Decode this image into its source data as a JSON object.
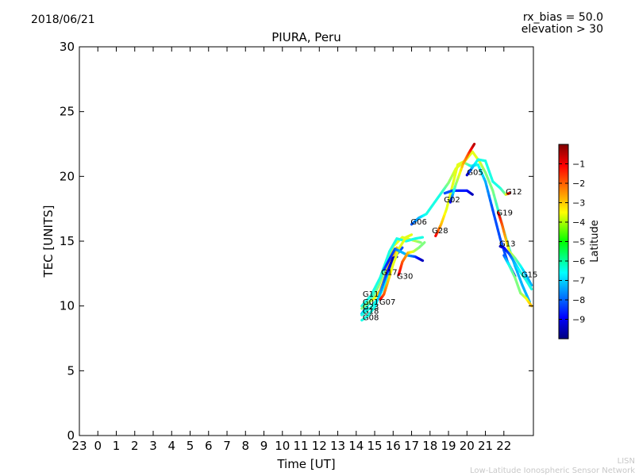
{
  "header": {
    "date": "2018/06/21",
    "rx_bias": "rx_bias = 50.0",
    "elevation": "elevation > 30"
  },
  "footer": {
    "credit_short": "LISN",
    "credit_long": "Low-Latitude Ionospheric Sensor Network"
  },
  "chart_data": {
    "type": "scatter",
    "title": "PIURA, Peru",
    "xlabel": "Time [UT]",
    "ylabel": "TEC [UNITS]",
    "ylim": [
      0,
      30
    ],
    "xlim": [
      -1,
      23.6
    ],
    "y_ticks": [
      0,
      5,
      10,
      15,
      20,
      25,
      30
    ],
    "x_ticks": [
      {
        "value": -1,
        "label": "23"
      },
      {
        "value": 0,
        "label": "0"
      },
      {
        "value": 1,
        "label": "1"
      },
      {
        "value": 2,
        "label": "2"
      },
      {
        "value": 3,
        "label": "3"
      },
      {
        "value": 4,
        "label": "4"
      },
      {
        "value": 5,
        "label": "5"
      },
      {
        "value": 6,
        "label": "6"
      },
      {
        "value": 7,
        "label": "7"
      },
      {
        "value": 8,
        "label": "8"
      },
      {
        "value": 9,
        "label": "9"
      },
      {
        "value": 10,
        "label": "10"
      },
      {
        "value": 11,
        "label": "11"
      },
      {
        "value": 12,
        "label": "12"
      },
      {
        "value": 13,
        "label": "13"
      },
      {
        "value": 14,
        "label": "14"
      },
      {
        "value": 15,
        "label": "15"
      },
      {
        "value": 16,
        "label": "16"
      },
      {
        "value": 17,
        "label": "17"
      },
      {
        "value": 18,
        "label": "18"
      },
      {
        "value": 19,
        "label": "19"
      },
      {
        "value": 20,
        "label": "20"
      },
      {
        "value": 21,
        "label": "21"
      },
      {
        "value": 22,
        "label": "22"
      }
    ],
    "grid": false,
    "colorbar": {
      "label": "Latitude",
      "min": -10,
      "max": 0,
      "ticks": [
        -1,
        -2,
        -3,
        -4,
        -5,
        -6,
        -7,
        -8,
        -9
      ],
      "tick_labels": [
        "−1",
        "−2",
        "−3",
        "−4",
        "−5",
        "−6",
        "−7",
        "−8",
        "−9"
      ],
      "colormap": "jet"
    },
    "series": [
      {
        "name": "G11",
        "points": [
          [
            14.3,
            9.4,
            -7
          ],
          [
            14.7,
            10.2,
            -6
          ],
          [
            15.2,
            11.5,
            -5
          ],
          [
            15.6,
            13.0,
            -5
          ],
          [
            16.0,
            14.6,
            -4
          ],
          [
            16.5,
            15.3,
            -4
          ],
          [
            17.0,
            15.1,
            -4
          ],
          [
            17.5,
            14.9,
            -5
          ]
        ]
      },
      {
        "name": "G01",
        "points": [
          [
            14.3,
            10.0,
            -6
          ],
          [
            14.8,
            10.8,
            -6
          ],
          [
            15.3,
            12.2,
            -6
          ],
          [
            15.8,
            14.2,
            -6
          ],
          [
            16.2,
            15.2,
            -6
          ],
          [
            16.7,
            15.0,
            -6
          ],
          [
            17.2,
            15.2,
            -6
          ],
          [
            17.6,
            15.3,
            -6
          ]
        ]
      },
      {
        "name": "G23",
        "points": [
          [
            14.3,
            9.8,
            -5
          ],
          [
            14.7,
            10.3,
            -5
          ],
          [
            15.0,
            10.6,
            -4
          ],
          [
            15.3,
            11.2,
            -3
          ],
          [
            15.6,
            12.4,
            -3
          ],
          [
            15.9,
            13.6,
            -3
          ],
          [
            16.2,
            14.5,
            -3
          ]
        ]
      },
      {
        "name": "G18",
        "points": [
          [
            14.3,
            9.3,
            -6
          ],
          [
            14.8,
            9.9,
            -6
          ],
          [
            15.2,
            10.6,
            -6
          ],
          [
            15.5,
            11.5,
            -6
          ],
          [
            15.9,
            13.0,
            -7
          ],
          [
            16.2,
            14.0,
            -8
          ],
          [
            16.5,
            14.5,
            -8
          ]
        ]
      },
      {
        "name": "G08",
        "points": [
          [
            14.3,
            8.9,
            -6
          ],
          [
            14.6,
            9.2,
            -6
          ],
          [
            15.0,
            9.9,
            -6
          ],
          [
            15.3,
            11.0,
            -7
          ],
          [
            15.6,
            12.3,
            -8
          ],
          [
            15.8,
            13.0,
            -9
          ],
          [
            16.0,
            13.7,
            -9.5
          ],
          [
            16.2,
            13.8,
            -9.5
          ]
        ]
      },
      {
        "name": "G07",
        "points": [
          [
            15.3,
            10.5,
            -1
          ],
          [
            15.5,
            10.9,
            -2
          ],
          [
            15.7,
            11.8,
            -3
          ],
          [
            16.0,
            13.2,
            -4
          ],
          [
            16.3,
            14.4,
            -4
          ],
          [
            16.7,
            15.3,
            -4
          ],
          [
            17.0,
            15.5,
            -4
          ]
        ]
      },
      {
        "name": "G17",
        "points": [
          [
            15.5,
            12.8,
            -8
          ],
          [
            15.8,
            13.6,
            -8.5
          ],
          [
            16.1,
            14.4,
            -8
          ],
          [
            16.4,
            14.2,
            -7
          ],
          [
            16.8,
            13.9,
            -7
          ],
          [
            17.2,
            13.8,
            -8
          ],
          [
            17.6,
            13.5,
            -9.5
          ]
        ]
      },
      {
        "name": "G30",
        "points": [
          [
            16.3,
            12.4,
            -1
          ],
          [
            16.5,
            13.4,
            -2
          ],
          [
            16.8,
            14.1,
            -3
          ],
          [
            17.1,
            14.2,
            -4
          ],
          [
            17.4,
            14.5,
            -5
          ],
          [
            17.7,
            14.9,
            -5
          ]
        ]
      },
      {
        "name": "G06",
        "points": [
          [
            17.0,
            16.3,
            -8
          ],
          [
            17.4,
            16.8,
            -7
          ],
          [
            17.8,
            17.1,
            -6
          ],
          [
            18.2,
            17.9,
            -6
          ],
          [
            18.6,
            18.7,
            -6
          ],
          [
            19.0,
            19.5,
            -5
          ],
          [
            19.4,
            20.6,
            -4
          ],
          [
            19.8,
            21.1,
            -4
          ],
          [
            20.2,
            20.8,
            -6
          ],
          [
            20.6,
            20.9,
            -6
          ],
          [
            21.0,
            19.6,
            -7
          ],
          [
            21.4,
            17.4,
            -8
          ],
          [
            21.8,
            15.2,
            -8
          ],
          [
            22.2,
            13.4,
            -8
          ],
          [
            22.6,
            12.3,
            -9
          ]
        ]
      },
      {
        "name": "G28",
        "points": [
          [
            18.3,
            15.4,
            -1
          ],
          [
            18.6,
            16.3,
            -3
          ],
          [
            18.9,
            17.5,
            -4
          ],
          [
            19.2,
            19.2,
            -4
          ],
          [
            19.5,
            20.9,
            -4
          ],
          [
            19.9,
            21.2,
            -4
          ],
          [
            20.3,
            21.9,
            -4
          ],
          [
            20.7,
            21.1,
            -4
          ],
          [
            21.0,
            20.3,
            -5
          ],
          [
            21.4,
            18.9,
            -5
          ],
          [
            21.8,
            16.8,
            -6
          ],
          [
            22.2,
            14.8,
            -6
          ],
          [
            22.6,
            13.1,
            -7
          ],
          [
            23.0,
            11.6,
            -7
          ],
          [
            23.4,
            10.3,
            -7
          ]
        ]
      },
      {
        "name": "G02",
        "points": [
          [
            18.8,
            18.7,
            -8
          ],
          [
            19.2,
            18.9,
            -8
          ],
          [
            19.6,
            18.9,
            -8.5
          ],
          [
            20.0,
            18.9,
            -8.5
          ],
          [
            20.3,
            18.6,
            -9.5
          ]
        ]
      },
      {
        "name": "G05",
        "points": [
          [
            19.1,
            18.0,
            -9
          ],
          [
            19.4,
            19.4,
            -5
          ],
          [
            19.8,
            21.0,
            -3
          ],
          [
            20.1,
            21.8,
            -2
          ],
          [
            20.4,
            22.5,
            -0.5
          ]
        ]
      },
      {
        "name": "G12",
        "points": [
          [
            20.0,
            20.1,
            -9.5
          ],
          [
            20.3,
            20.7,
            -7
          ],
          [
            20.6,
            21.3,
            -6
          ],
          [
            21.0,
            21.2,
            -6
          ],
          [
            21.4,
            19.6,
            -6
          ],
          [
            21.8,
            19.1,
            -6
          ],
          [
            22.1,
            18.6,
            -5
          ],
          [
            22.3,
            18.7,
            -0.5
          ]
        ]
      },
      {
        "name": "G19",
        "points": [
          [
            21.7,
            17.2,
            -1
          ],
          [
            21.9,
            16.3,
            -2
          ],
          [
            22.1,
            15.2,
            -3
          ],
          [
            22.3,
            14.2,
            -4
          ],
          [
            22.6,
            13.7,
            -5
          ],
          [
            22.9,
            13.1,
            -6
          ],
          [
            23.2,
            12.4,
            -7
          ],
          [
            23.5,
            11.6,
            -7
          ]
        ]
      },
      {
        "name": "G13",
        "points": [
          [
            21.8,
            14.6,
            -9.5
          ],
          [
            22.0,
            14.5,
            -9
          ],
          [
            22.3,
            14.0,
            -8
          ],
          [
            22.6,
            13.3,
            -7
          ],
          [
            22.9,
            12.6,
            -6
          ],
          [
            23.2,
            12.0,
            -6
          ],
          [
            23.5,
            11.3,
            -6
          ]
        ]
      },
      {
        "name": "G15",
        "points": [
          [
            22.0,
            13.9,
            -8
          ],
          [
            22.3,
            13.1,
            -6
          ],
          [
            22.6,
            12.2,
            -5
          ],
          [
            22.9,
            11.0,
            -5
          ],
          [
            23.2,
            10.6,
            -4
          ],
          [
            23.5,
            10.0,
            -3
          ]
        ]
      }
    ],
    "satellite_labels": [
      {
        "name": "G11",
        "x": 14.35,
        "y": 10.7
      },
      {
        "name": "G01",
        "x": 14.35,
        "y": 10.1
      },
      {
        "name": "G23",
        "x": 14.35,
        "y": 9.75
      },
      {
        "name": "G18",
        "x": 14.35,
        "y": 9.4
      },
      {
        "name": "G08",
        "x": 14.35,
        "y": 8.9
      },
      {
        "name": "G07",
        "x": 15.25,
        "y": 10.1
      },
      {
        "name": "G17",
        "x": 15.35,
        "y": 12.4
      },
      {
        "name": "G30",
        "x": 16.2,
        "y": 12.1
      },
      {
        "name": "G06",
        "x": 16.95,
        "y": 16.3
      },
      {
        "name": "G28",
        "x": 18.1,
        "y": 15.6
      },
      {
        "name": "G02",
        "x": 18.75,
        "y": 18.0
      },
      {
        "name": "G05",
        "x": 20.0,
        "y": 20.1
      },
      {
        "name": "G12",
        "x": 22.1,
        "y": 18.6
      },
      {
        "name": "G19",
        "x": 21.6,
        "y": 17.0
      },
      {
        "name": "G13",
        "x": 21.75,
        "y": 14.6
      },
      {
        "name": "G15",
        "x": 22.95,
        "y": 12.2
      }
    ]
  }
}
